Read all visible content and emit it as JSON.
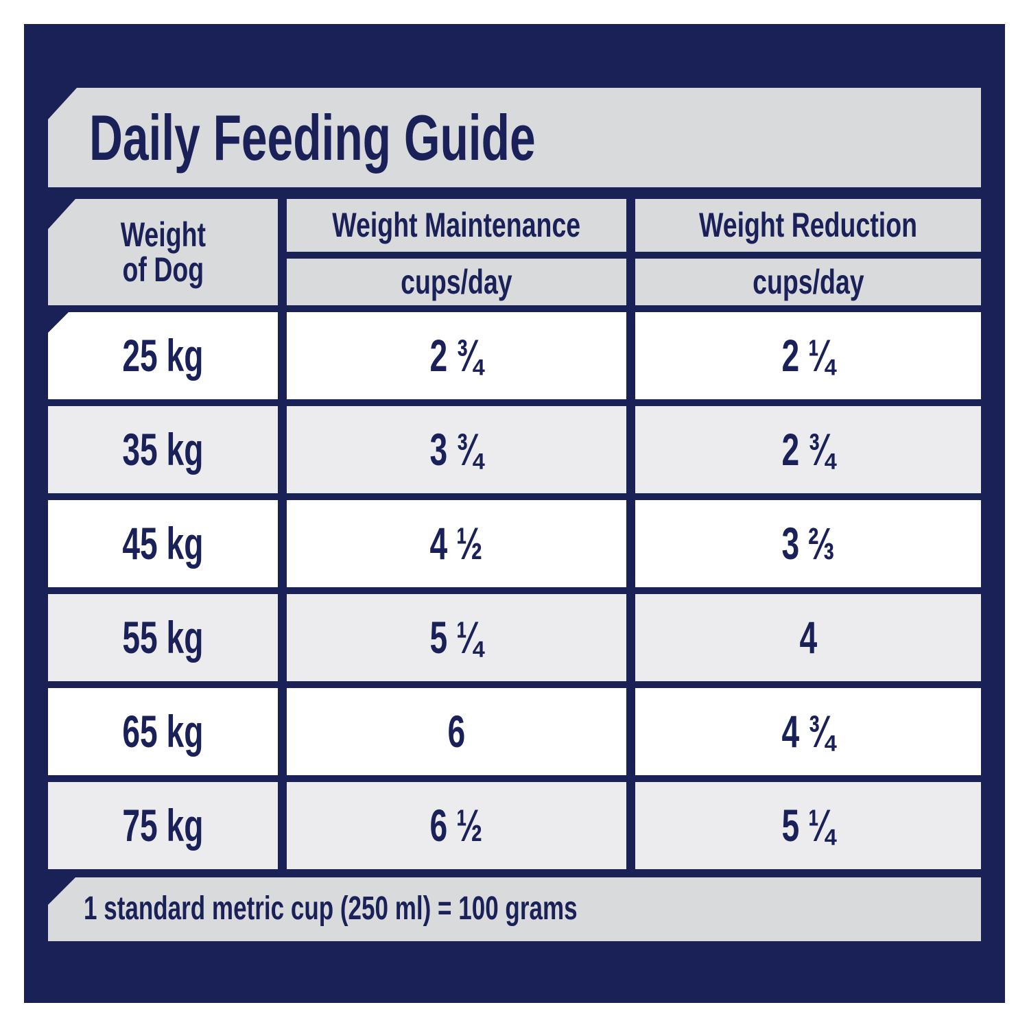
{
  "title": "Daily Feeding Guide",
  "table": {
    "columns": [
      {
        "label": "Weight of Dog",
        "label_line1": "Weight",
        "label_line2": "of Dog"
      },
      {
        "label": "Weight Maintenance",
        "unit": "cups/day"
      },
      {
        "label": "Weight Reduction",
        "unit": "cups/day"
      }
    ],
    "rows": [
      {
        "weight": "25 kg",
        "maintenance": "2 ¾",
        "reduction": "2 ¼"
      },
      {
        "weight": "35 kg",
        "maintenance": "3 ¾",
        "reduction": "2 ¾"
      },
      {
        "weight": "45 kg",
        "maintenance": "4 ½",
        "reduction": "3 ⅔"
      },
      {
        "weight": "55 kg",
        "maintenance": "5 ¼",
        "reduction": "4"
      },
      {
        "weight": "65 kg",
        "maintenance": "6",
        "reduction": "4 ¾"
      },
      {
        "weight": "75 kg",
        "maintenance": "6 ½",
        "reduction": "5 ¼"
      }
    ]
  },
  "footnote": "1 standard metric cup (250 ml) = 100 grams",
  "colors": {
    "navy": "#1A2157",
    "band-gray": "#D9DADC",
    "row-alt": "#ECECEE",
    "row-white": "#FFFFFF",
    "text-navy": "#1A2158",
    "page-bg": "#FFFFFF"
  }
}
